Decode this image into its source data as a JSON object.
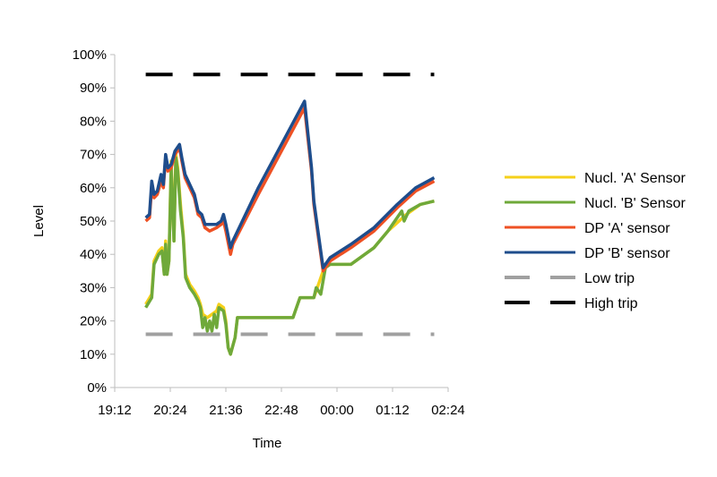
{
  "chart_data": {
    "type": "line",
    "xlabel": "Time",
    "ylabel": "Level",
    "x_ticks": [
      "19:12",
      "20:24",
      "21:36",
      "22:48",
      "00:00",
      "01:12",
      "02:24"
    ],
    "y_ticks": [
      "0%",
      "10%",
      "20%",
      "30%",
      "40%",
      "50%",
      "60%",
      "70%",
      "80%",
      "90%",
      "100%"
    ],
    "x_range_hours": [
      19.2,
      26.4
    ],
    "ylim": [
      0,
      100
    ],
    "grid": false,
    "legend_position": "right",
    "series": [
      {
        "name": "Nucl. 'A' Sensor",
        "color": "#F5D01A",
        "style": "solid",
        "points": [
          [
            19.87,
            25
          ],
          [
            20.0,
            28
          ],
          [
            20.05,
            38
          ],
          [
            20.15,
            41
          ],
          [
            20.22,
            42
          ],
          [
            20.27,
            34
          ],
          [
            20.3,
            44
          ],
          [
            20.33,
            34
          ],
          [
            20.37,
            38
          ],
          [
            20.42,
            68
          ],
          [
            20.48,
            44
          ],
          [
            20.52,
            70
          ],
          [
            20.56,
            66
          ],
          [
            20.62,
            55
          ],
          [
            20.68,
            46
          ],
          [
            20.73,
            34
          ],
          [
            20.82,
            31
          ],
          [
            20.92,
            29
          ],
          [
            21.0,
            27
          ],
          [
            21.05,
            25
          ],
          [
            21.1,
            22
          ],
          [
            21.2,
            21
          ],
          [
            21.3,
            22
          ],
          [
            21.4,
            23
          ],
          [
            21.45,
            25
          ],
          [
            21.55,
            24
          ],
          [
            21.6,
            20
          ],
          [
            21.65,
            12
          ],
          [
            21.7,
            10
          ],
          [
            21.8,
            15
          ],
          [
            21.85,
            21
          ],
          [
            22.0,
            21
          ],
          [
            22.5,
            21
          ],
          [
            23.05,
            21
          ],
          [
            23.1,
            23
          ],
          [
            23.2,
            27
          ],
          [
            23.5,
            27
          ],
          [
            23.75,
            37
          ],
          [
            23.85,
            37
          ],
          [
            24.3,
            37
          ],
          [
            24.8,
            42
          ],
          [
            25.1,
            47
          ],
          [
            25.5,
            52
          ],
          [
            25.8,
            55
          ],
          [
            26.1,
            56
          ]
        ]
      },
      {
        "name": "Nucl. 'B' Sensor",
        "color": "#6FA93A",
        "style": "solid",
        "points": [
          [
            19.87,
            24
          ],
          [
            20.0,
            27
          ],
          [
            20.05,
            37
          ],
          [
            20.15,
            40
          ],
          [
            20.22,
            41
          ],
          [
            20.27,
            34
          ],
          [
            20.3,
            43
          ],
          [
            20.33,
            34
          ],
          [
            20.37,
            38
          ],
          [
            20.42,
            66
          ],
          [
            20.48,
            44
          ],
          [
            20.52,
            69
          ],
          [
            20.56,
            65
          ],
          [
            20.62,
            53
          ],
          [
            20.68,
            45
          ],
          [
            20.73,
            33
          ],
          [
            20.82,
            30
          ],
          [
            20.92,
            28
          ],
          [
            21.0,
            26
          ],
          [
            21.05,
            24
          ],
          [
            21.1,
            18
          ],
          [
            21.15,
            21
          ],
          [
            21.2,
            17
          ],
          [
            21.25,
            20
          ],
          [
            21.3,
            17
          ],
          [
            21.35,
            22
          ],
          [
            21.4,
            18
          ],
          [
            21.45,
            24
          ],
          [
            21.55,
            23
          ],
          [
            21.6,
            19
          ],
          [
            21.65,
            12
          ],
          [
            21.7,
            10
          ],
          [
            21.8,
            15
          ],
          [
            21.85,
            21
          ],
          [
            22.0,
            21
          ],
          [
            22.5,
            21
          ],
          [
            23.05,
            21
          ],
          [
            23.1,
            23
          ],
          [
            23.2,
            27
          ],
          [
            23.5,
            27
          ],
          [
            23.55,
            30
          ],
          [
            23.65,
            28
          ],
          [
            23.75,
            36
          ],
          [
            23.85,
            37
          ],
          [
            24.3,
            37
          ],
          [
            24.8,
            42
          ],
          [
            25.1,
            47
          ],
          [
            25.4,
            53
          ],
          [
            25.45,
            50
          ],
          [
            25.55,
            53
          ],
          [
            25.8,
            55
          ],
          [
            26.1,
            56
          ]
        ]
      },
      {
        "name": "DP 'A' sensor",
        "color": "#EE5124",
        "style": "solid",
        "points": [
          [
            19.87,
            50
          ],
          [
            19.95,
            51
          ],
          [
            20.0,
            60
          ],
          [
            20.05,
            57
          ],
          [
            20.12,
            58
          ],
          [
            20.2,
            62
          ],
          [
            20.25,
            60
          ],
          [
            20.3,
            69
          ],
          [
            20.35,
            65
          ],
          [
            20.42,
            66
          ],
          [
            20.5,
            70
          ],
          [
            20.6,
            72
          ],
          [
            20.65,
            68
          ],
          [
            20.72,
            63
          ],
          [
            20.82,
            60
          ],
          [
            20.92,
            57
          ],
          [
            21.0,
            52
          ],
          [
            21.08,
            51
          ],
          [
            21.15,
            48
          ],
          [
            21.25,
            47
          ],
          [
            21.4,
            48
          ],
          [
            21.5,
            49
          ],
          [
            21.55,
            50
          ],
          [
            21.6,
            47
          ],
          [
            21.7,
            40
          ],
          [
            21.75,
            43
          ],
          [
            22.3,
            58
          ],
          [
            23.3,
            84
          ],
          [
            23.45,
            65
          ],
          [
            23.5,
            55
          ],
          [
            23.6,
            45
          ],
          [
            23.7,
            35
          ],
          [
            23.85,
            38
          ],
          [
            24.3,
            42
          ],
          [
            24.8,
            47
          ],
          [
            25.3,
            54
          ],
          [
            25.7,
            59
          ],
          [
            26.1,
            62
          ]
        ]
      },
      {
        "name": "DP 'B' sensor",
        "color": "#1E4D8C",
        "style": "solid",
        "points": [
          [
            19.87,
            51
          ],
          [
            19.95,
            52
          ],
          [
            20.0,
            62
          ],
          [
            20.05,
            58
          ],
          [
            20.12,
            59
          ],
          [
            20.2,
            64
          ],
          [
            20.25,
            61
          ],
          [
            20.3,
            70
          ],
          [
            20.35,
            66
          ],
          [
            20.42,
            67
          ],
          [
            20.5,
            71
          ],
          [
            20.6,
            73
          ],
          [
            20.65,
            69
          ],
          [
            20.72,
            64
          ],
          [
            20.82,
            61
          ],
          [
            20.92,
            58
          ],
          [
            21.0,
            53
          ],
          [
            21.08,
            52
          ],
          [
            21.15,
            49
          ],
          [
            21.25,
            49
          ],
          [
            21.4,
            49
          ],
          [
            21.5,
            50
          ],
          [
            21.55,
            52
          ],
          [
            21.6,
            49
          ],
          [
            21.7,
            42
          ],
          [
            21.75,
            44
          ],
          [
            22.3,
            60
          ],
          [
            23.3,
            86
          ],
          [
            23.45,
            66
          ],
          [
            23.5,
            56
          ],
          [
            23.6,
            46
          ],
          [
            23.7,
            36
          ],
          [
            23.85,
            39
          ],
          [
            24.3,
            43
          ],
          [
            24.8,
            48
          ],
          [
            25.3,
            55
          ],
          [
            25.7,
            60
          ],
          [
            26.1,
            63
          ]
        ]
      },
      {
        "name": "Low trip",
        "color": "#A0A0A0",
        "style": "dashed",
        "points": [
          [
            19.87,
            16
          ],
          [
            26.1,
            16
          ]
        ]
      },
      {
        "name": "High trip",
        "color": "#000000",
        "style": "dashed",
        "points": [
          [
            19.87,
            94
          ],
          [
            26.1,
            94
          ]
        ]
      }
    ]
  }
}
